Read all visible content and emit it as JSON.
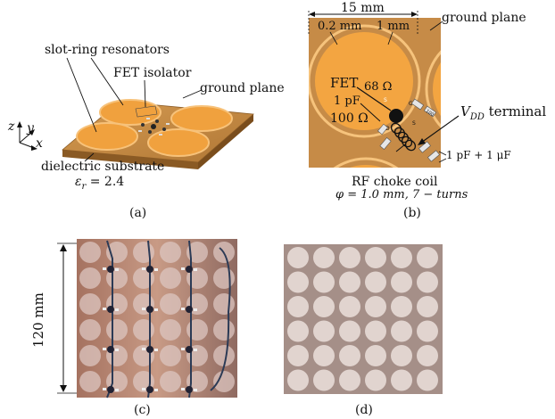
{
  "panel_a": {
    "caption": "(a)",
    "slot_ring_label": "slot-ring resonators",
    "fet_isolator_label": "FET isolator",
    "ground_plane_label": "ground plane",
    "dielectric_label": "dielectric substrate",
    "epsilon_label": "ε",
    "epsilon_sub": "r",
    "epsilon_value": " = 2.4",
    "axis_z": "z",
    "axis_y": "y",
    "axis_x": "x"
  },
  "panel_b": {
    "caption": "(b)",
    "dim_top": "15 mm",
    "dim_slot": "0.2 mm",
    "dim_ring": "1 mm",
    "ground_plane_label": "ground plane",
    "fet_label": "FET",
    "cap_label": "1 pF",
    "res100_label": "100 Ω",
    "res68_label": "68 Ω",
    "vdd_label": "V",
    "vdd_sub": "DD",
    "vdd_suffix": " terminal",
    "decoupling_label": "1 pF + 1 μF",
    "choke_label": "RF choke coil",
    "choke_spec": "φ = 1.0 mm,  7 − turns",
    "pin_s": "S",
    "pin_g": "G",
    "pin_d": "D",
    "chip_100": "100"
  },
  "panel_c": {
    "caption": "(c)",
    "dim_label": "120 mm"
  },
  "panel_d": {
    "caption": "(d)"
  },
  "colors": {
    "copper": "#c68b47",
    "copper_dark": "#9e6a30",
    "gold_disk": "#f3a541",
    "gold_ring": "#f6c37c",
    "photo_bg_c": "#b7826b",
    "photo_bg_d": "#a58f88",
    "photo_disk": "#e8dcd7"
  }
}
